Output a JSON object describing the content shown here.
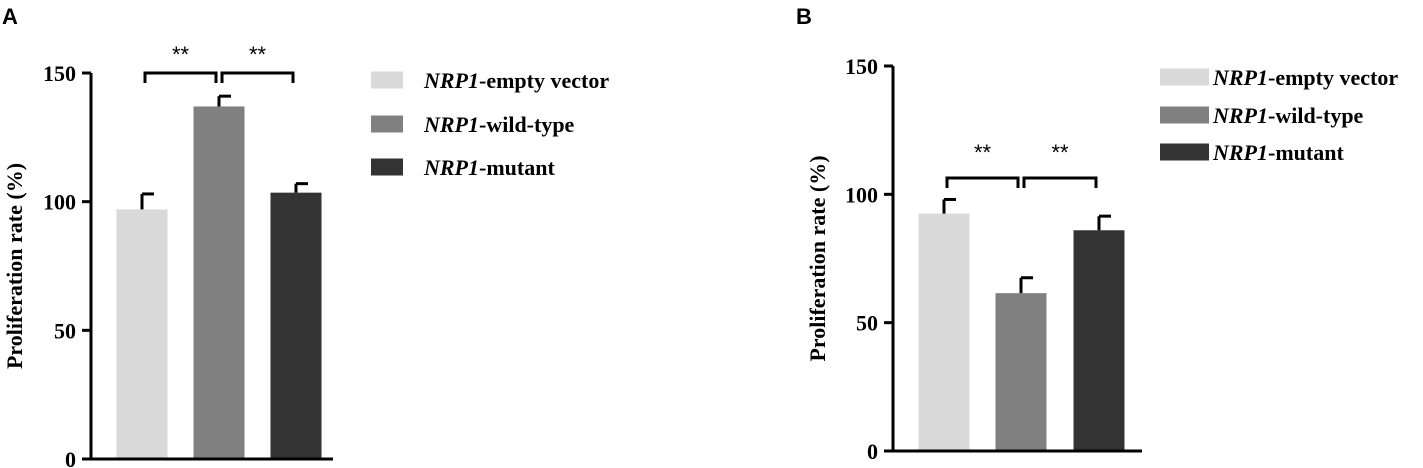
{
  "colors": {
    "empty_vector": "#d9d9d9",
    "wild_type": "#808080",
    "mutant": "#333333",
    "axis": "#000000"
  },
  "chart_data": [
    {
      "panel": "A",
      "type": "bar",
      "ylabel": "Proliferation rate (%)",
      "ylim": [
        0,
        150
      ],
      "yticks": [
        0,
        50,
        100,
        150
      ],
      "grid": false,
      "legend_position": "right",
      "series": [
        {
          "name": "empty vector",
          "gene": "NRP1",
          "suffix": "-empty vector",
          "value": 97,
          "error": 6,
          "color_key": "empty_vector"
        },
        {
          "name": "wild-type",
          "gene": "NRP1",
          "suffix": "-wild-type",
          "value": 137,
          "error": 4,
          "color_key": "wild_type"
        },
        {
          "name": "mutant",
          "gene": "NRP1",
          "suffix": "-mutant",
          "value": 103.5,
          "error": 3.5,
          "color_key": "mutant"
        }
      ],
      "significance": [
        {
          "from": 0,
          "to": 1,
          "label": "**"
        },
        {
          "from": 1,
          "to": 2,
          "label": "**"
        }
      ]
    },
    {
      "panel": "B",
      "type": "bar",
      "ylabel": "Proliferation rate (%)",
      "ylim": [
        0,
        150
      ],
      "yticks": [
        0,
        50,
        100,
        150
      ],
      "grid": false,
      "legend_position": "top-right",
      "series": [
        {
          "name": "empty vector",
          "gene": "NRP1",
          "suffix": "-empty vector",
          "value": 92.5,
          "error": 5.5,
          "color_key": "empty_vector"
        },
        {
          "name": "wild-type",
          "gene": "NRP1",
          "suffix": "-wild-type",
          "value": 61.5,
          "error": 6,
          "color_key": "wild_type"
        },
        {
          "name": "mutant",
          "gene": "NRP1",
          "suffix": "-mutant",
          "value": 86,
          "error": 5.5,
          "color_key": "mutant"
        }
      ],
      "significance": [
        {
          "from": 0,
          "to": 1,
          "label": "**"
        },
        {
          "from": 1,
          "to": 2,
          "label": "**"
        }
      ]
    }
  ]
}
